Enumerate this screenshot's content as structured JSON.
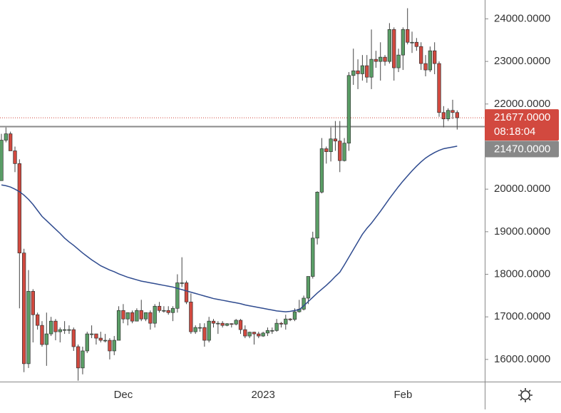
{
  "chart_data": {
    "type": "candlestick",
    "categories": [
      null,
      null,
      null,
      null,
      null,
      null,
      null,
      null,
      null,
      null,
      null,
      null,
      null,
      null,
      null,
      null,
      null,
      null,
      null,
      null,
      null,
      null,
      null,
      null,
      null,
      null,
      null,
      "Dec",
      null,
      null,
      null,
      null,
      null,
      null,
      null,
      null,
      null,
      null,
      null,
      null,
      null,
      null,
      null,
      null,
      null,
      null,
      null,
      null,
      null,
      null,
      null,
      null,
      null,
      null,
      null,
      null,
      null,
      null,
      "2023",
      null,
      null,
      null,
      null,
      null,
      null,
      null,
      null,
      null,
      null,
      null,
      null,
      null,
      null,
      null,
      null,
      null,
      null,
      null,
      null,
      null,
      null,
      null,
      null,
      null,
      null,
      null,
      null,
      null,
      null,
      "Feb",
      null,
      null,
      null,
      null,
      null,
      null,
      null,
      null,
      null,
      null,
      null,
      null
    ],
    "ohlc": [
      [
        20200,
        21300,
        20200,
        21150
      ],
      [
        21150,
        21450,
        21100,
        21300
      ],
      [
        21300,
        21350,
        20900,
        20900
      ],
      [
        20900,
        21000,
        20400,
        20600
      ],
      [
        20600,
        20700,
        17200,
        18500
      ],
      [
        18500,
        18600,
        15700,
        15900
      ],
      [
        15900,
        18100,
        15800,
        17600
      ],
      [
        17600,
        17650,
        16400,
        17050
      ],
      [
        17050,
        17100,
        16700,
        16800
      ],
      [
        16800,
        16900,
        16300,
        16350
      ],
      [
        16350,
        17100,
        15850,
        16600
      ],
      [
        16600,
        17000,
        16550,
        16900
      ],
      [
        16900,
        16950,
        16450,
        16650
      ],
      [
        16650,
        16750,
        16400,
        16700
      ],
      [
        16700,
        16900,
        16600,
        16700
      ],
      [
        16700,
        16800,
        16600,
        16700
      ],
      [
        16700,
        16750,
        16200,
        16300
      ],
      [
        16300,
        16350,
        15500,
        15800
      ],
      [
        15800,
        16300,
        15650,
        16200
      ],
      [
        16200,
        16650,
        16150,
        16600
      ],
      [
        16600,
        16800,
        16500,
        16600
      ],
      [
        16600,
        16600,
        16350,
        16500
      ],
      [
        16500,
        16650,
        16400,
        16450
      ],
      [
        16450,
        16600,
        16400,
        16450
      ],
      [
        16450,
        16500,
        16000,
        16200
      ],
      [
        16200,
        16550,
        16100,
        16450
      ],
      [
        16450,
        17250,
        16450,
        17150
      ],
      [
        17150,
        17300,
        16850,
        16950
      ],
      [
        16950,
        17100,
        16800,
        17100
      ],
      [
        17100,
        17150,
        16850,
        16900
      ],
      [
        16900,
        17200,
        16900,
        17150
      ],
      [
        17150,
        17400,
        16900,
        16950
      ],
      [
        16950,
        17100,
        16900,
        17100
      ],
      [
        17100,
        17150,
        16700,
        16850
      ],
      [
        16850,
        17300,
        16750,
        17250
      ],
      [
        17250,
        17350,
        17100,
        17150
      ],
      [
        17150,
        17250,
        17100,
        17150
      ],
      [
        17150,
        17250,
        17050,
        17100
      ],
      [
        17100,
        17250,
        16900,
        17200
      ],
      [
        17200,
        18000,
        17100,
        17800
      ],
      [
        17800,
        18400,
        17700,
        17800
      ],
      [
        17800,
        17850,
        17300,
        17350
      ],
      [
        17350,
        17550,
        16600,
        16650
      ],
      [
        16650,
        16800,
        16600,
        16750
      ],
      [
        16750,
        16850,
        16650,
        16750
      ],
      [
        16750,
        16850,
        16300,
        16450
      ],
      [
        16450,
        17000,
        16400,
        16900
      ],
      [
        16900,
        16950,
        16750,
        16850
      ],
      [
        16850,
        16900,
        16600,
        16850
      ],
      [
        16850,
        16900,
        16750,
        16800
      ],
      [
        16800,
        16850,
        16780,
        16840
      ],
      [
        16840,
        16850,
        16750,
        16830
      ],
      [
        16830,
        16950,
        16800,
        16920
      ],
      [
        16920,
        16950,
        16600,
        16700
      ],
      [
        16700,
        16800,
        16500,
        16550
      ],
      [
        16550,
        16650,
        16500,
        16640
      ],
      [
        16640,
        16650,
        16350,
        16600
      ],
      [
        16600,
        16650,
        16500,
        16550
      ],
      [
        16550,
        16650,
        16530,
        16620
      ],
      [
        16620,
        16750,
        16550,
        16680
      ],
      [
        16680,
        16750,
        16600,
        16680
      ],
      [
        16680,
        16950,
        16650,
        16850
      ],
      [
        16850,
        16880,
        16750,
        16830
      ],
      [
        16830,
        17050,
        16700,
        16950
      ],
      [
        16950,
        16970,
        16900,
        16940
      ],
      [
        16940,
        17200,
        16900,
        17120
      ],
      [
        17120,
        17400,
        17100,
        17180
      ],
      [
        17180,
        17500,
        17150,
        17440
      ],
      [
        17440,
        17950,
        17300,
        17950
      ],
      [
        17950,
        19000,
        17900,
        18850
      ],
      [
        18850,
        19950,
        18700,
        19930
      ],
      [
        19930,
        21200,
        19900,
        20950
      ],
      [
        20950,
        21000,
        20600,
        20880
      ],
      [
        20880,
        21450,
        20650,
        21180
      ],
      [
        21180,
        21600,
        20900,
        21130
      ],
      [
        21130,
        21600,
        20400,
        20670
      ],
      [
        20670,
        21200,
        20650,
        21080
      ],
      [
        21080,
        22750,
        20900,
        22670
      ],
      [
        22670,
        23300,
        22450,
        22780
      ],
      [
        22780,
        23050,
        22350,
        22710
      ],
      [
        22710,
        23150,
        22550,
        22900
      ],
      [
        22900,
        23150,
        22500,
        22630
      ],
      [
        22630,
        23750,
        22350,
        23050
      ],
      [
        23050,
        23250,
        22850,
        23000
      ],
      [
        23000,
        23450,
        22550,
        23100
      ],
      [
        23100,
        23150,
        22900,
        23000
      ],
      [
        23000,
        23900,
        22950,
        23750
      ],
      [
        23750,
        23800,
        22550,
        22850
      ],
      [
        22850,
        23300,
        22750,
        23150
      ],
      [
        23150,
        23800,
        22800,
        23750
      ],
      [
        23750,
        24250,
        23400,
        23450
      ],
      [
        23450,
        23700,
        23200,
        23450
      ],
      [
        23450,
        23550,
        23250,
        23350
      ],
      [
        23350,
        23450,
        22800,
        22950
      ],
      [
        22950,
        23150,
        22650,
        22800
      ],
      [
        22800,
        23350,
        22750,
        23250
      ],
      [
        23250,
        23450,
        22700,
        22950
      ],
      [
        22950,
        23000,
        21700,
        21800
      ],
      [
        21800,
        21950,
        21450,
        21650
      ],
      [
        21650,
        21900,
        21600,
        21850
      ],
      [
        21850,
        22100,
        21650,
        21800
      ],
      [
        21800,
        21850,
        21400,
        21677
      ]
    ],
    "up_color": "#5a9e66",
    "down_color": "#d2493f",
    "ma": {
      "color": "#2f4b8f",
      "values": [
        20100,
        20080,
        20050,
        20000,
        19940,
        19860,
        19760,
        19640,
        19500,
        19360,
        19260,
        19160,
        19060,
        18960,
        18850,
        18760,
        18680,
        18590,
        18500,
        18420,
        18340,
        18270,
        18200,
        18150,
        18100,
        18060,
        18010,
        17970,
        17930,
        17900,
        17870,
        17840,
        17820,
        17800,
        17780,
        17760,
        17740,
        17720,
        17700,
        17670,
        17640,
        17610,
        17580,
        17550,
        17520,
        17490,
        17460,
        17430,
        17410,
        17390,
        17370,
        17350,
        17330,
        17310,
        17280,
        17260,
        17240,
        17220,
        17200,
        17180,
        17160,
        17140,
        17130,
        17120,
        17130,
        17150,
        17170,
        17260,
        17360,
        17460,
        17560,
        17650,
        17740,
        17840,
        17950,
        18050,
        18220,
        18400,
        18580,
        18760,
        18940,
        19080,
        19200,
        19340,
        19480,
        19630,
        19780,
        19920,
        20060,
        20190,
        20310,
        20430,
        20540,
        20640,
        20730,
        20800,
        20860,
        20910,
        20950,
        20970,
        20990,
        21010
      ]
    },
    "ylim": [
      15479,
      24443
    ],
    "yticks": [
      {
        "value": 16000,
        "label": "16000.0000"
      },
      {
        "value": 17000,
        "label": "17000.0000"
      },
      {
        "value": 18000,
        "label": "18000.0000"
      },
      {
        "value": 19000,
        "label": "19000.0000"
      },
      {
        "value": 20000,
        "label": "20000.0000"
      },
      {
        "value": 21000,
        "label": "21000.0000"
      },
      {
        "value": 22000,
        "label": "22000.0000"
      },
      {
        "value": 23000,
        "label": "23000.0000"
      },
      {
        "value": 24000,
        "label": "24000.0000"
      }
    ],
    "price_line": {
      "value": 21677,
      "label": "21677.0000",
      "countdown": "08:18:04",
      "color": "#d2493f"
    },
    "level_line": {
      "value": 21470,
      "label": "21470.0000",
      "color": "#8a8a8a"
    }
  }
}
